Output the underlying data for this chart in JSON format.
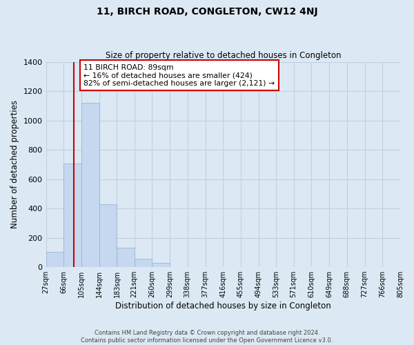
{
  "title": "11, BIRCH ROAD, CONGLETON, CW12 4NJ",
  "subtitle": "Size of property relative to detached houses in Congleton",
  "xlabel": "Distribution of detached houses by size in Congleton",
  "ylabel": "Number of detached properties",
  "bar_values": [
    105,
    705,
    1120,
    430,
    130,
    55,
    30,
    0,
    0,
    0,
    0,
    0,
    0,
    0,
    0,
    0,
    0,
    0,
    0,
    0
  ],
  "bin_edges": [
    27,
    66,
    105,
    144,
    183,
    221,
    260,
    299,
    338,
    377,
    416,
    455,
    494,
    533,
    571,
    610,
    649,
    688,
    727,
    766,
    805
  ],
  "x_tick_labels": [
    "27sqm",
    "66sqm",
    "105sqm",
    "144sqm",
    "183sqm",
    "221sqm",
    "260sqm",
    "299sqm",
    "338sqm",
    "377sqm",
    "416sqm",
    "455sqm",
    "494sqm",
    "533sqm",
    "571sqm",
    "610sqm",
    "649sqm",
    "688sqm",
    "727sqm",
    "766sqm",
    "805sqm"
  ],
  "bar_color": "#c5d8f0",
  "bar_edge_color": "#9ab5d0",
  "grid_color": "#c0d0e0",
  "background_color": "#dce9f5",
  "property_line_x": 89,
  "property_line_color": "#cc0000",
  "annotation_line1": "11 BIRCH ROAD: 89sqm",
  "annotation_line2": "← 16% of detached houses are smaller (424)",
  "annotation_line3": "82% of semi-detached houses are larger (2,121) →",
  "annotation_box_color": "#ffffff",
  "annotation_box_edge_color": "#cc0000",
  "ylim": [
    0,
    1400
  ],
  "yticks": [
    0,
    200,
    400,
    600,
    800,
    1000,
    1200,
    1400
  ],
  "footer_line1": "Contains HM Land Registry data © Crown copyright and database right 2024.",
  "footer_line2": "Contains public sector information licensed under the Open Government Licence v3.0."
}
